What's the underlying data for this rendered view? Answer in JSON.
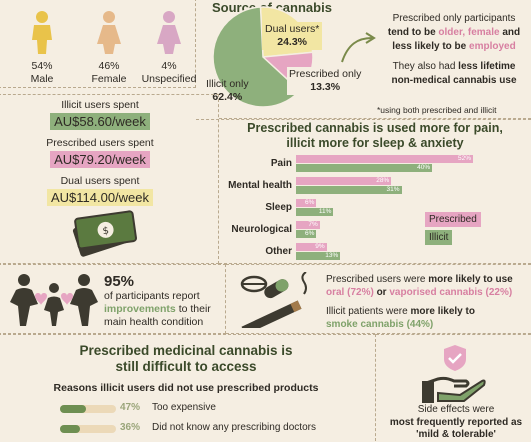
{
  "demographics": [
    {
      "label": "Male",
      "pct": "54%",
      "color": "#e9c34a"
    },
    {
      "label": "Female",
      "pct": "46%",
      "color": "#e6b98a"
    },
    {
      "label": "Unspecified",
      "pct": "4%",
      "color": "#d8a7c4"
    }
  ],
  "source": {
    "title": "Source of cannabis",
    "slices": [
      {
        "label": "Illicit only",
        "pct": "62.4%",
        "value": 62.4,
        "color": "#8eb07c"
      },
      {
        "label": "Dual users*",
        "pct": "24.3%",
        "value": 24.3,
        "color": "#f2e6a3"
      },
      {
        "label": "Prescribed only",
        "pct": "13.3%",
        "value": 13.3,
        "color": "#e6a5c2"
      }
    ],
    "note_line1": "Prescribed only participants",
    "note_line2_a": "tend to be ",
    "note_line2_b": "older, female",
    "note_line2_c": " and",
    "note_line3_a": "less likely to be ",
    "note_line3_b": "employed",
    "note_line4_a": "They also had ",
    "note_line4_b": "less lifetime",
    "note_line5": "non-medical cannabis use",
    "footnote": "*using both prescribed and illicit"
  },
  "spend": [
    {
      "label": "Illicit users spent",
      "amount": "AU$58.60/week"
    },
    {
      "label": "Prescribed users spent",
      "amount": "AU$79.20/week"
    },
    {
      "label": "Dual users spent",
      "amount": "AU$114.00/week"
    }
  ],
  "use_chart": {
    "title_line1": "Prescribed cannabis is used more for pain,",
    "title_line2": "illicit more for sleep & anxiety",
    "legend_prescribed": "Prescribed",
    "legend_illicit": "Illicit"
  },
  "chart_data": {
    "type": "bar",
    "categories": [
      "Pain",
      "Mental health",
      "Sleep",
      "Neurological",
      "Other"
    ],
    "series": [
      {
        "name": "Prescribed",
        "values": [
          52,
          28,
          6,
          7,
          9
        ],
        "labels": [
          "52%",
          "28%",
          "6%",
          "7%",
          "9%"
        ],
        "color": "#e6a5c2"
      },
      {
        "name": "Illicit",
        "values": [
          40,
          31,
          11,
          6,
          13
        ],
        "labels": [
          "40%",
          "31%",
          "11%",
          "6%",
          "13%"
        ],
        "color": "#8eb07c"
      }
    ],
    "xlim": [
      0,
      52
    ]
  },
  "improve": {
    "pct": "95%",
    "line1": "of participants report",
    "line2_a": "improvements",
    "line2_b": " to their",
    "line3": "main health condition"
  },
  "route": {
    "line1_a": "Prescribed users were ",
    "line1_b": "more likely to use",
    "line2_a": "oral (72%)",
    "line2_b": " or ",
    "line2_c": "vaporised cannabis (22%)",
    "line3_a": "Illicit patients were ",
    "line3_b": "more likely to",
    "line4": "smoke cannabis (44%)"
  },
  "access": {
    "title_line1": "Prescribed medicinal cannabis is",
    "title_line2": "still difficult to access",
    "subtitle": "Reasons illicit users did not use prescribed products",
    "reasons": [
      {
        "pct": "47%",
        "value": 47,
        "label": "Too expensive"
      },
      {
        "pct": "36%",
        "value": 36,
        "label": "Did not know any prescribing doctors"
      }
    ]
  },
  "side_effects": {
    "line1": "Side effects were",
    "line2": "most frequently reported as",
    "line3": "'mild & tolerable'"
  }
}
